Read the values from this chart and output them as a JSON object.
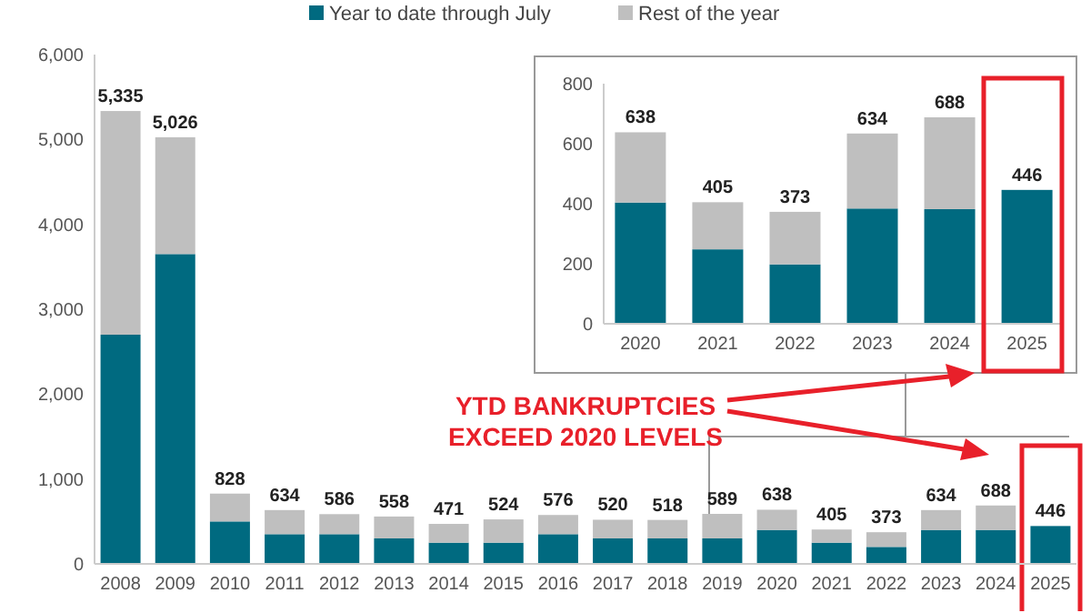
{
  "chart_data": [
    {
      "type": "bar",
      "stacked": true,
      "categories": [
        "2008",
        "2009",
        "2010",
        "2011",
        "2012",
        "2013",
        "2014",
        "2015",
        "2016",
        "2017",
        "2018",
        "2019",
        "2020",
        "2021",
        "2022",
        "2023",
        "2024",
        "2025"
      ],
      "series": [
        {
          "name": "Year to date through July",
          "color": "#006a80",
          "values": [
            2700,
            3650,
            500,
            350,
            350,
            300,
            250,
            250,
            350,
            300,
            300,
            300,
            400,
            250,
            200,
            400,
            400,
            446
          ]
        },
        {
          "name": "Rest of the year",
          "color": "#bfbfbf",
          "values": [
            2635,
            1376,
            328,
            284,
            236,
            258,
            221,
            274,
            226,
            220,
            218,
            289,
            238,
            155,
            173,
            234,
            288,
            0
          ]
        }
      ],
      "totals": [
        "5,335",
        "5,026",
        "828",
        "634",
        "586",
        "558",
        "471",
        "524",
        "576",
        "520",
        "518",
        "589",
        "638",
        "405",
        "373",
        "634",
        "688",
        "446"
      ],
      "ylim": [
        0,
        6000
      ],
      "yticks": [
        0,
        {
          "value": 1000,
          "label": "1,000"
        },
        {
          "value": 2000,
          "label": "2,000"
        },
        {
          "value": 3000,
          "label": "3,000"
        },
        {
          "value": 4000,
          "label": "4,000"
        },
        {
          "value": 5000,
          "label": "5,000"
        },
        {
          "value": 6000,
          "label": "6,000"
        }
      ],
      "legend": "top",
      "annotations": [
        "YTD BANKRUPTCIES EXCEED 2020 LEVELS"
      ]
    },
    {
      "type": "bar",
      "stacked": true,
      "categories": [
        "2020",
        "2021",
        "2022",
        "2023",
        "2024",
        "2025"
      ],
      "series": [
        {
          "color": "#006a80",
          "values": [
            404,
            248,
            198,
            384,
            382,
            446
          ]
        },
        {
          "color": "#bfbfbf",
          "values": [
            234,
            157,
            175,
            250,
            306,
            0
          ]
        }
      ],
      "totals": [
        "638",
        "405",
        "373",
        "634",
        "688",
        "446"
      ],
      "ylim": [
        0,
        800
      ],
      "yticks": [
        0,
        200,
        400,
        600,
        800
      ]
    }
  ]
}
